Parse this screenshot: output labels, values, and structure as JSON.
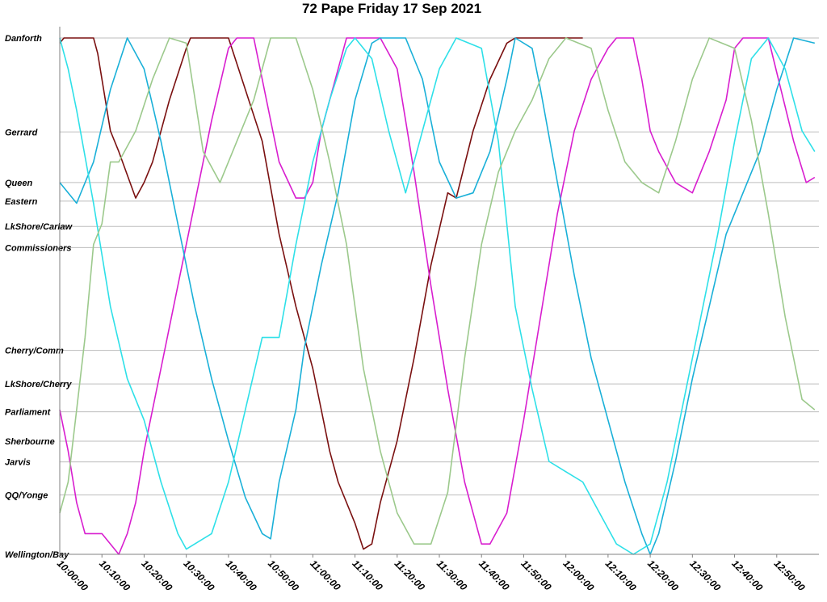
{
  "chart_data": {
    "type": "line",
    "title": "72 Pape Friday 17 Sep 2021",
    "xlabel": "",
    "ylabel": "",
    "x_unit": "minutes after 10:00:00",
    "xlim": [
      0,
      180
    ],
    "grid": true,
    "legend": "none",
    "stops": [
      {
        "name": "Danforth",
        "pos": 0.0
      },
      {
        "name": "Gerrard",
        "pos": 18.2
      },
      {
        "name": "Queen",
        "pos": 28.0
      },
      {
        "name": "Eastern",
        "pos": 31.6
      },
      {
        "name": "LkShore/Carlaw",
        "pos": 36.5
      },
      {
        "name": "Commissioners",
        "pos": 40.6
      },
      {
        "name": "Cherry/Comm",
        "pos": 60.5
      },
      {
        "name": "LkShore/Cherry",
        "pos": 67.0
      },
      {
        "name": "Parliament",
        "pos": 72.4
      },
      {
        "name": "Sherbourne",
        "pos": 78.1
      },
      {
        "name": "Jarvis",
        "pos": 82.1
      },
      {
        "name": "QQ/Yonge",
        "pos": 88.5
      },
      {
        "name": "Wellington/Bay",
        "pos": 100.0
      }
    ],
    "x_ticks": [
      "10:00:00",
      "10:10:00",
      "10:20:00",
      "10:30:00",
      "10:40:00",
      "10:50:00",
      "11:00:00",
      "11:10:00",
      "11:20:00",
      "11:30:00",
      "11:40:00",
      "11:50:00",
      "12:00:00",
      "12:10:00",
      "12:20:00",
      "12:30:00",
      "12:40:00",
      "12:50:00"
    ],
    "x_tick_values": [
      0,
      10,
      20,
      30,
      40,
      50,
      60,
      70,
      80,
      90,
      100,
      110,
      120,
      130,
      140,
      150,
      160,
      170
    ],
    "colors": {
      "dark_red": "#7a1010",
      "magenta": "#d81ecf",
      "sky_blue": "#1ab0d8",
      "light_cyan": "#2ee0e8",
      "sage_green": "#9cc98c"
    },
    "series": [
      {
        "color": "dark_red",
        "points": [
          [
            0,
            1
          ],
          [
            1,
            0
          ],
          [
            8,
            0
          ],
          [
            9,
            3
          ],
          [
            12,
            18
          ],
          [
            14,
            22
          ],
          [
            18,
            31
          ],
          [
            20,
            28
          ],
          [
            22,
            24
          ],
          [
            26,
            12
          ],
          [
            30,
            2
          ],
          [
            31,
            0
          ],
          [
            40,
            0
          ],
          [
            44,
            10
          ],
          [
            48,
            20
          ],
          [
            52,
            38
          ],
          [
            56,
            52
          ],
          [
            60,
            64
          ],
          [
            62,
            72
          ],
          [
            64,
            80
          ],
          [
            66,
            86
          ],
          [
            70,
            94
          ],
          [
            72,
            99
          ],
          [
            74,
            98
          ],
          [
            76,
            90
          ],
          [
            80,
            78
          ],
          [
            84,
            62
          ],
          [
            88,
            44
          ],
          [
            92,
            30
          ],
          [
            94,
            31
          ],
          [
            98,
            18
          ],
          [
            102,
            8
          ],
          [
            106,
            1
          ],
          [
            108,
            0
          ],
          [
            124,
            0
          ]
        ]
      },
      {
        "color": "magenta",
        "points": [
          [
            0,
            72
          ],
          [
            2,
            80
          ],
          [
            4,
            90
          ],
          [
            6,
            96
          ],
          [
            10,
            96
          ],
          [
            14,
            100
          ],
          [
            16,
            96
          ],
          [
            18,
            90
          ],
          [
            20,
            80
          ],
          [
            24,
            64
          ],
          [
            28,
            48
          ],
          [
            32,
            32
          ],
          [
            36,
            16
          ],
          [
            40,
            2
          ],
          [
            42,
            0
          ],
          [
            46,
            0
          ],
          [
            48,
            8
          ],
          [
            52,
            24
          ],
          [
            56,
            31
          ],
          [
            58,
            31
          ],
          [
            60,
            28
          ],
          [
            62,
            18
          ],
          [
            66,
            6
          ],
          [
            68,
            0
          ],
          [
            76,
            0
          ],
          [
            80,
            6
          ],
          [
            84,
            26
          ],
          [
            88,
            48
          ],
          [
            92,
            68
          ],
          [
            96,
            86
          ],
          [
            100,
            98
          ],
          [
            102,
            98
          ],
          [
            106,
            92
          ],
          [
            110,
            74
          ],
          [
            114,
            54
          ],
          [
            118,
            34
          ],
          [
            122,
            18
          ],
          [
            126,
            8
          ],
          [
            130,
            2
          ],
          [
            132,
            0
          ],
          [
            136,
            0
          ],
          [
            138,
            8
          ],
          [
            140,
            18
          ],
          [
            142,
            22
          ],
          [
            146,
            28
          ],
          [
            150,
            30
          ],
          [
            154,
            22
          ],
          [
            158,
            12
          ],
          [
            160,
            2
          ],
          [
            162,
            0
          ],
          [
            168,
            0
          ],
          [
            171,
            10
          ],
          [
            174,
            20
          ],
          [
            177,
            28
          ],
          [
            179,
            27
          ]
        ]
      },
      {
        "color": "sky_blue",
        "points": [
          [
            0,
            28
          ],
          [
            4,
            32
          ],
          [
            8,
            24
          ],
          [
            12,
            10
          ],
          [
            16,
            0
          ],
          [
            20,
            6
          ],
          [
            24,
            20
          ],
          [
            28,
            36
          ],
          [
            32,
            52
          ],
          [
            36,
            66
          ],
          [
            40,
            78
          ],
          [
            44,
            89
          ],
          [
            48,
            96
          ],
          [
            50,
            97
          ],
          [
            52,
            86
          ],
          [
            56,
            72
          ],
          [
            58,
            60
          ],
          [
            62,
            44
          ],
          [
            66,
            30
          ],
          [
            70,
            12
          ],
          [
            74,
            1
          ],
          [
            76,
            0
          ],
          [
            82,
            0
          ],
          [
            86,
            8
          ],
          [
            90,
            24
          ],
          [
            94,
            31
          ],
          [
            98,
            30
          ],
          [
            102,
            22
          ],
          [
            106,
            8
          ],
          [
            108,
            0
          ],
          [
            112,
            2
          ],
          [
            114,
            10
          ],
          [
            118,
            28
          ],
          [
            122,
            46
          ],
          [
            126,
            62
          ],
          [
            130,
            74
          ],
          [
            134,
            86
          ],
          [
            138,
            96
          ],
          [
            140,
            100
          ],
          [
            142,
            96
          ],
          [
            146,
            82
          ],
          [
            150,
            66
          ],
          [
            154,
            52
          ],
          [
            158,
            38
          ],
          [
            162,
            30
          ],
          [
            166,
            22
          ],
          [
            170,
            10
          ],
          [
            174,
            0
          ],
          [
            179,
            1
          ]
        ]
      },
      {
        "color": "light_cyan",
        "points": [
          [
            0,
            0
          ],
          [
            2,
            6
          ],
          [
            4,
            14
          ],
          [
            8,
            32
          ],
          [
            12,
            52
          ],
          [
            16,
            66
          ],
          [
            20,
            74
          ],
          [
            24,
            86
          ],
          [
            28,
            96
          ],
          [
            30,
            99
          ],
          [
            32,
            98
          ],
          [
            36,
            96
          ],
          [
            40,
            86
          ],
          [
            44,
            72
          ],
          [
            48,
            58
          ],
          [
            52,
            58
          ],
          [
            56,
            40
          ],
          [
            60,
            24
          ],
          [
            64,
            12
          ],
          [
            68,
            2
          ],
          [
            70,
            0
          ],
          [
            74,
            4
          ],
          [
            78,
            18
          ],
          [
            82,
            30
          ],
          [
            84,
            24
          ],
          [
            86,
            18
          ],
          [
            90,
            6
          ],
          [
            94,
            0
          ],
          [
            100,
            2
          ],
          [
            104,
            20
          ],
          [
            108,
            52
          ],
          [
            112,
            68
          ],
          [
            116,
            82
          ],
          [
            120,
            84
          ],
          [
            124,
            86
          ],
          [
            128,
            92
          ],
          [
            132,
            98
          ],
          [
            136,
            100
          ],
          [
            140,
            98
          ],
          [
            144,
            86
          ],
          [
            148,
            70
          ],
          [
            152,
            54
          ],
          [
            156,
            38
          ],
          [
            160,
            20
          ],
          [
            164,
            4
          ],
          [
            168,
            0
          ],
          [
            172,
            6
          ],
          [
            176,
            18
          ],
          [
            179,
            22
          ]
        ]
      },
      {
        "color": "sage_green",
        "points": [
          [
            0,
            92
          ],
          [
            2,
            86
          ],
          [
            4,
            72
          ],
          [
            6,
            58
          ],
          [
            8,
            40
          ],
          [
            10,
            36
          ],
          [
            12,
            24
          ],
          [
            14,
            24
          ],
          [
            18,
            18
          ],
          [
            22,
            8
          ],
          [
            26,
            0
          ],
          [
            30,
            1
          ],
          [
            34,
            22
          ],
          [
            38,
            28
          ],
          [
            42,
            20
          ],
          [
            46,
            12
          ],
          [
            50,
            0
          ],
          [
            56,
            0
          ],
          [
            60,
            10
          ],
          [
            64,
            24
          ],
          [
            68,
            40
          ],
          [
            72,
            64
          ],
          [
            76,
            80
          ],
          [
            80,
            92
          ],
          [
            84,
            98
          ],
          [
            88,
            98
          ],
          [
            92,
            88
          ],
          [
            96,
            62
          ],
          [
            100,
            40
          ],
          [
            104,
            26
          ],
          [
            108,
            18
          ],
          [
            112,
            12
          ],
          [
            116,
            4
          ],
          [
            120,
            0
          ],
          [
            126,
            2
          ],
          [
            130,
            14
          ],
          [
            134,
            24
          ],
          [
            138,
            28
          ],
          [
            142,
            30
          ],
          [
            146,
            20
          ],
          [
            150,
            8
          ],
          [
            154,
            0
          ],
          [
            160,
            2
          ],
          [
            164,
            16
          ],
          [
            168,
            34
          ],
          [
            172,
            54
          ],
          [
            176,
            70
          ],
          [
            179,
            72
          ]
        ]
      }
    ]
  }
}
